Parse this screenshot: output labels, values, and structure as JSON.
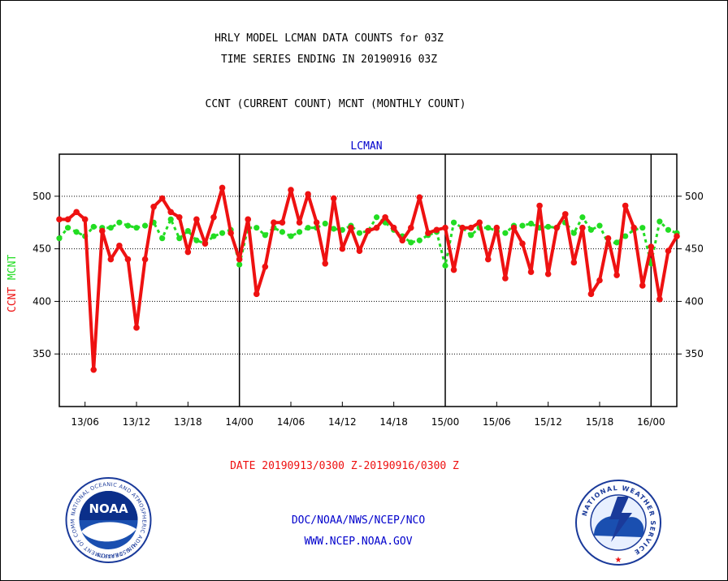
{
  "header": {
    "title_line1": "HRLY MODEL LCMAN DATA COUNTS for 03Z",
    "title_line2": "TIME SERIES ENDING IN 20190916 03Z",
    "legend_line": "CCNT (CURRENT COUNT) MCNT (MONTHLY COUNT)"
  },
  "footer": {
    "date_range": "DATE 20190913/0300 Z-20190916/0300 Z",
    "org": "DOC/NOAA/NWS/NCEP/NCO",
    "url": "WWW.NCEP.NOAA.GOV",
    "noaa_logo_text": "NOAA",
    "noaa_ring_text": "NATIONAL OCEANIC AND ATMOSPHERIC ADMINISTRATION",
    "noaa_ring_bottom": "U.S. DEPARTMENT OF COMMERCE",
    "nws_ring_text": "NATIONAL WEATHER SERVICE"
  },
  "colors": {
    "ccnt": "#ee1111",
    "mcnt": "#22dd22",
    "panel_title": "#0000cc",
    "footer_text": "#0000cc",
    "date_text": "#ee1111"
  },
  "chart_data": {
    "type": "line",
    "title": "LCMAN",
    "ylabel_ccnt": "CCNT",
    "ylabel_mcnt": "MCNT",
    "ylim": [
      300,
      540
    ],
    "yticks": [
      350,
      400,
      450,
      500
    ],
    "xlim": [
      0,
      72
    ],
    "x_tick_labels": [
      "13/06",
      "13/12",
      "13/18",
      "14/00",
      "14/06",
      "14/12",
      "14/18",
      "15/00",
      "15/06",
      "15/12",
      "15/18",
      "16/00"
    ],
    "x_tick_hours": [
      3,
      9,
      15,
      21,
      27,
      33,
      39,
      45,
      51,
      57,
      63,
      69
    ],
    "day_boundaries": [
      21,
      45,
      69
    ],
    "grid": "horizontal dotted at y ticks",
    "series": [
      {
        "name": "CCNT",
        "values": [
          478,
          478,
          485,
          478,
          335,
          467,
          440,
          453,
          440,
          375,
          440,
          490,
          498,
          485,
          480,
          447,
          478,
          455,
          480,
          508,
          465,
          440,
          478,
          407,
          433,
          475,
          475,
          506,
          475,
          502,
          475,
          436,
          498,
          450,
          470,
          448,
          467,
          470,
          480,
          470,
          458,
          470,
          499,
          465,
          468,
          470,
          430,
          470,
          470,
          475,
          440,
          470,
          422,
          470,
          455,
          428,
          491,
          426,
          470,
          483,
          437,
          470,
          407,
          420,
          460,
          425,
          491,
          470,
          415,
          452,
          402,
          448,
          462
        ]
      },
      {
        "name": "MCNT",
        "values": [
          460,
          470,
          466,
          462,
          471,
          470,
          470,
          475,
          472,
          470,
          472,
          475,
          460,
          478,
          460,
          467,
          458,
          455,
          462,
          465,
          468,
          435,
          470,
          470,
          463,
          470,
          466,
          462,
          466,
          470,
          470,
          474,
          469,
          468,
          472,
          465,
          467,
          480,
          475,
          468,
          462,
          456,
          458,
          463,
          466,
          434,
          475,
          470,
          463,
          470,
          470,
          467,
          465,
          472,
          472,
          474,
          470,
          471,
          470,
          475,
          465,
          480,
          468,
          472,
          455,
          456,
          462,
          468,
          470,
          436,
          476,
          468,
          465
        ]
      }
    ]
  }
}
